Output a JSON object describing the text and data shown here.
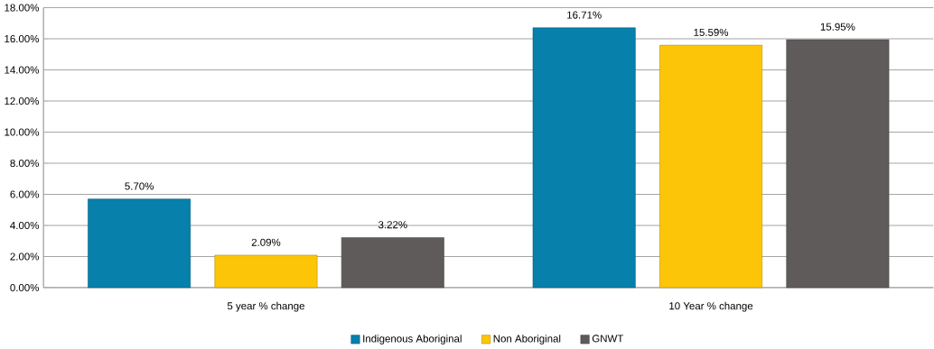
{
  "chart_data": {
    "type": "bar",
    "categories": [
      "5 year % change",
      "10 Year % change"
    ],
    "series": [
      {
        "name": "Indigenous Aboriginal",
        "color": "#0780ab",
        "values": [
          5.7,
          16.71
        ],
        "value_labels": [
          "5.70%",
          "16.71%"
        ]
      },
      {
        "name": "Non Aboriginal",
        "color": "#fdc507",
        "values": [
          2.09,
          15.59
        ],
        "value_labels": [
          "2.09%",
          "15.59%"
        ]
      },
      {
        "name": "GNWT",
        "color": "#5f5b5b",
        "values": [
          3.22,
          15.95
        ],
        "value_labels": [
          "3.22%",
          "15.95%"
        ]
      }
    ],
    "ylim": [
      0,
      18
    ],
    "yticks": [
      {
        "value": 0,
        "label": "0.00%"
      },
      {
        "value": 2,
        "label": "2.00%"
      },
      {
        "value": 4,
        "label": "4.00%"
      },
      {
        "value": 6,
        "label": "6.00%"
      },
      {
        "value": 8,
        "label": "8.00%"
      },
      {
        "value": 10,
        "label": "10.00%"
      },
      {
        "value": 12,
        "label": "12.00%"
      },
      {
        "value": 14,
        "label": "14.00%"
      },
      {
        "value": 16,
        "label": "16.00%"
      },
      {
        "value": 18,
        "label": "18.00%"
      }
    ],
    "grid": "y",
    "legend": "bottom"
  }
}
